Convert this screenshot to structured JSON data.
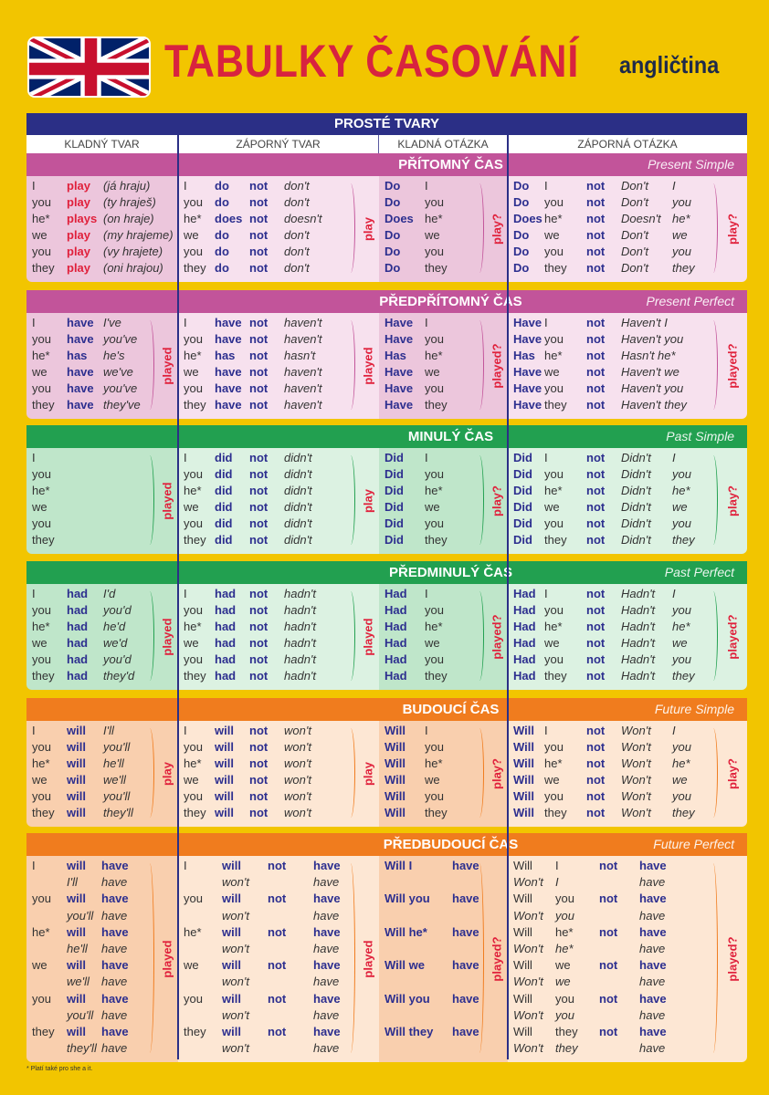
{
  "header": {
    "title": "TABULKY ČASOVÁNÍ",
    "lang": "angličtina"
  },
  "table_title": "PROSTÉ TVARY",
  "columns": [
    "KLADNÝ TVAR",
    "ZÁPORNÝ TVAR",
    "KLADNÁ OTÁZKA",
    "ZÁPORNÁ OTÁZKA"
  ],
  "colors": {
    "pink_head": "#c2549a",
    "pink_light": "#f7e1ee",
    "pink_dark": "#ecc6dc",
    "green_head": "#22a050",
    "green_light": "#dcf2e2",
    "green_dark": "#bfe6ca",
    "orange_head": "#f07c1e",
    "orange_light": "#fde7d4",
    "orange_dark": "#f9cfae"
  },
  "sections": [
    {
      "title": "PŘÍTOMNÝ ČAS",
      "en": "Present Simple",
      "theme": "pink",
      "cols": [
        {
          "bracket": "",
          "rows": [
            [
              "I",
              "play",
              "(já hraju)"
            ],
            [
              "you",
              "play",
              "(ty hraješ)"
            ],
            [
              "he*",
              "plays",
              "(on hraje)"
            ],
            [
              "we",
              "play",
              "(my hrajeme)"
            ],
            [
              "you",
              "play",
              "(vy hrajete)"
            ],
            [
              "they",
              "play",
              "(oni hrajou)"
            ]
          ]
        },
        {
          "bracket": "play",
          "rows": [
            [
              "I",
              "do",
              "not",
              "don't"
            ],
            [
              "you",
              "do",
              "not",
              "don't"
            ],
            [
              "he*",
              "does",
              "not",
              "doesn't"
            ],
            [
              "we",
              "do",
              "not",
              "don't"
            ],
            [
              "you",
              "do",
              "not",
              "don't"
            ],
            [
              "they",
              "do",
              "not",
              "don't"
            ]
          ]
        },
        {
          "bracket": "play?",
          "rows": [
            [
              "Do",
              "I"
            ],
            [
              "Do",
              "you"
            ],
            [
              "Does",
              "he*"
            ],
            [
              "Do",
              "we"
            ],
            [
              "Do",
              "you"
            ],
            [
              "Do",
              "they"
            ]
          ]
        },
        {
          "bracket": "play?",
          "rows": [
            [
              "Do",
              "I",
              "not",
              "Don't",
              "I"
            ],
            [
              "Do",
              "you",
              "not",
              "Don't",
              "you"
            ],
            [
              "Does",
              "he*",
              "not",
              "Doesn't",
              "he*"
            ],
            [
              "Do",
              "we",
              "not",
              "Don't",
              "we"
            ],
            [
              "Do",
              "you",
              "not",
              "Don't",
              "you"
            ],
            [
              "Do",
              "they",
              "not",
              "Don't",
              "they"
            ]
          ]
        }
      ]
    },
    {
      "title": "PŘEDPŘÍTOMNÝ ČAS",
      "en": "Present Perfect",
      "theme": "pink",
      "cols": [
        {
          "bracket": "played",
          "rows": [
            [
              "I",
              "have",
              "I've"
            ],
            [
              "you",
              "have",
              "you've"
            ],
            [
              "he*",
              "has",
              "he's"
            ],
            [
              "we",
              "have",
              "we've"
            ],
            [
              "you",
              "have",
              "you've"
            ],
            [
              "they",
              "have",
              "they've"
            ]
          ]
        },
        {
          "bracket": "played",
          "rows": [
            [
              "I",
              "have",
              "not",
              "haven't"
            ],
            [
              "you",
              "have",
              "not",
              "haven't"
            ],
            [
              "he*",
              "has",
              "not",
              "hasn't"
            ],
            [
              "we",
              "have",
              "not",
              "haven't"
            ],
            [
              "you",
              "have",
              "not",
              "haven't"
            ],
            [
              "they",
              "have",
              "not",
              "haven't"
            ]
          ]
        },
        {
          "bracket": "played?",
          "rows": [
            [
              "Have",
              "I"
            ],
            [
              "Have",
              "you"
            ],
            [
              "Has",
              "he*"
            ],
            [
              "Have",
              "we"
            ],
            [
              "Have",
              "you"
            ],
            [
              "Have",
              "they"
            ]
          ]
        },
        {
          "bracket": "played?",
          "rows": [
            [
              "Have",
              "I",
              "not",
              "Haven't I"
            ],
            [
              "Have",
              "you",
              "not",
              "Haven't you"
            ],
            [
              "Has",
              "he*",
              "not",
              "Hasn't he*"
            ],
            [
              "Have",
              "we",
              "not",
              "Haven't we"
            ],
            [
              "Have",
              "you",
              "not",
              "Haven't you"
            ],
            [
              "Have",
              "they",
              "not",
              "Haven't they"
            ]
          ]
        }
      ]
    },
    {
      "title": "MINULÝ ČAS",
      "en": "Past Simple",
      "theme": "green",
      "cols": [
        {
          "bracket": "played",
          "rows": [
            [
              "I"
            ],
            [
              "you"
            ],
            [
              "he*"
            ],
            [
              "we"
            ],
            [
              "you"
            ],
            [
              "they"
            ]
          ]
        },
        {
          "bracket": "play",
          "rows": [
            [
              "I",
              "did",
              "not",
              "didn't"
            ],
            [
              "you",
              "did",
              "not",
              "didn't"
            ],
            [
              "he*",
              "did",
              "not",
              "didn't"
            ],
            [
              "we",
              "did",
              "not",
              "didn't"
            ],
            [
              "you",
              "did",
              "not",
              "didn't"
            ],
            [
              "they",
              "did",
              "not",
              "didn't"
            ]
          ]
        },
        {
          "bracket": "play?",
          "rows": [
            [
              "Did",
              "I"
            ],
            [
              "Did",
              "you"
            ],
            [
              "Did",
              "he*"
            ],
            [
              "Did",
              "we"
            ],
            [
              "Did",
              "you"
            ],
            [
              "Did",
              "they"
            ]
          ]
        },
        {
          "bracket": "play?",
          "rows": [
            [
              "Did",
              "I",
              "not",
              "Didn't",
              "I"
            ],
            [
              "Did",
              "you",
              "not",
              "Didn't",
              "you"
            ],
            [
              "Did",
              "he*",
              "not",
              "Didn't",
              "he*"
            ],
            [
              "Did",
              "we",
              "not",
              "Didn't",
              "we"
            ],
            [
              "Did",
              "you",
              "not",
              "Didn't",
              "you"
            ],
            [
              "Did",
              "they",
              "not",
              "Didn't",
              "they"
            ]
          ]
        }
      ]
    },
    {
      "title": "PŘEDMINULÝ ČAS",
      "en": "Past Perfect",
      "theme": "green",
      "cols": [
        {
          "bracket": "played",
          "rows": [
            [
              "I",
              "had",
              "I'd"
            ],
            [
              "you",
              "had",
              "you'd"
            ],
            [
              "he*",
              "had",
              "he'd"
            ],
            [
              "we",
              "had",
              "we'd"
            ],
            [
              "you",
              "had",
              "you'd"
            ],
            [
              "they",
              "had",
              "they'd"
            ]
          ]
        },
        {
          "bracket": "played",
          "rows": [
            [
              "I",
              "had",
              "not",
              "hadn't"
            ],
            [
              "you",
              "had",
              "not",
              "hadn't"
            ],
            [
              "he*",
              "had",
              "not",
              "hadn't"
            ],
            [
              "we",
              "had",
              "not",
              "hadn't"
            ],
            [
              "you",
              "had",
              "not",
              "hadn't"
            ],
            [
              "they",
              "had",
              "not",
              "hadn't"
            ]
          ]
        },
        {
          "bracket": "played?",
          "rows": [
            [
              "Had",
              "I"
            ],
            [
              "Had",
              "you"
            ],
            [
              "Had",
              "he*"
            ],
            [
              "Had",
              "we"
            ],
            [
              "Had",
              "you"
            ],
            [
              "Had",
              "they"
            ]
          ]
        },
        {
          "bracket": "played?",
          "rows": [
            [
              "Had",
              "I",
              "not",
              "Hadn't",
              "I"
            ],
            [
              "Had",
              "you",
              "not",
              "Hadn't",
              "you"
            ],
            [
              "Had",
              "he*",
              "not",
              "Hadn't",
              "he*"
            ],
            [
              "Had",
              "we",
              "not",
              "Hadn't",
              "we"
            ],
            [
              "Had",
              "you",
              "not",
              "Hadn't",
              "you"
            ],
            [
              "Had",
              "they",
              "not",
              "Hadn't",
              "they"
            ]
          ]
        }
      ]
    },
    {
      "title": "BUDOUCÍ ČAS",
      "en": "Future Simple",
      "theme": "orange",
      "cols": [
        {
          "bracket": "play",
          "rows": [
            [
              "I",
              "will",
              "I'll"
            ],
            [
              "you",
              "will",
              "you'll"
            ],
            [
              "he*",
              "will",
              "he'll"
            ],
            [
              "we",
              "will",
              "we'll"
            ],
            [
              "you",
              "will",
              "you'll"
            ],
            [
              "they",
              "will",
              "they'll"
            ]
          ]
        },
        {
          "bracket": "play",
          "rows": [
            [
              "I",
              "will",
              "not",
              "won't"
            ],
            [
              "you",
              "will",
              "not",
              "won't"
            ],
            [
              "he*",
              "will",
              "not",
              "won't"
            ],
            [
              "we",
              "will",
              "not",
              "won't"
            ],
            [
              "you",
              "will",
              "not",
              "won't"
            ],
            [
              "they",
              "will",
              "not",
              "won't"
            ]
          ]
        },
        {
          "bracket": "play?",
          "rows": [
            [
              "Will",
              "I"
            ],
            [
              "Will",
              "you"
            ],
            [
              "Will",
              "he*"
            ],
            [
              "Will",
              "we"
            ],
            [
              "Will",
              "you"
            ],
            [
              "Will",
              "they"
            ]
          ]
        },
        {
          "bracket": "play?",
          "rows": [
            [
              "Will",
              "I",
              "not",
              "Won't",
              "I"
            ],
            [
              "Will",
              "you",
              "not",
              "Won't",
              "you"
            ],
            [
              "Will",
              "he*",
              "not",
              "Won't",
              "he*"
            ],
            [
              "Will",
              "we",
              "not",
              "Won't",
              "we"
            ],
            [
              "Will",
              "you",
              "not",
              "Won't",
              "you"
            ],
            [
              "Will",
              "they",
              "not",
              "Won't",
              "they"
            ]
          ]
        }
      ]
    },
    {
      "title": "PŘEDBUDOUCÍ ČAS",
      "en": "Future Perfect",
      "theme": "orange",
      "alt": true,
      "cols": [
        {
          "bracket": "played",
          "rows": [
            [
              "I",
              "will",
              "have"
            ],
            [
              "",
              "I'll",
              "have"
            ],
            [
              "you",
              "will",
              "have"
            ],
            [
              "",
              "you'll",
              "have"
            ],
            [
              "he*",
              "will",
              "have"
            ],
            [
              "",
              "he'll",
              "have"
            ],
            [
              "we",
              "will",
              "have"
            ],
            [
              "",
              "we'll",
              "have"
            ],
            [
              "you",
              "will",
              "have"
            ],
            [
              "",
              "you'll",
              "have"
            ],
            [
              "they",
              "will",
              "have"
            ],
            [
              "",
              "they'll",
              "have"
            ]
          ]
        },
        {
          "bracket": "played",
          "rows": [
            [
              "I",
              "will",
              "not",
              "have"
            ],
            [
              "",
              "won't",
              "",
              "have"
            ],
            [
              "you",
              "will",
              "not",
              "have"
            ],
            [
              "",
              "won't",
              "",
              "have"
            ],
            [
              "he*",
              "will",
              "not",
              "have"
            ],
            [
              "",
              "won't",
              "",
              "have"
            ],
            [
              "we",
              "will",
              "not",
              "have"
            ],
            [
              "",
              "won't",
              "",
              "have"
            ],
            [
              "you",
              "will",
              "not",
              "have"
            ],
            [
              "",
              "won't",
              "",
              "have"
            ],
            [
              "they",
              "will",
              "not",
              "have"
            ],
            [
              "",
              "won't",
              "",
              "have"
            ]
          ]
        },
        {
          "bracket": "played?",
          "rows": [
            [
              "Will I",
              "have"
            ],
            [
              "",
              ""
            ],
            [
              "Will you",
              "have"
            ],
            [
              "",
              ""
            ],
            [
              "Will he*",
              "have"
            ],
            [
              "",
              ""
            ],
            [
              "Will we",
              "have"
            ],
            [
              "",
              ""
            ],
            [
              "Will you",
              "have"
            ],
            [
              "",
              ""
            ],
            [
              "Will they",
              "have"
            ],
            [
              "",
              ""
            ]
          ]
        },
        {
          "bracket": "played?",
          "rows": [
            [
              "Will",
              "I",
              "not",
              "have"
            ],
            [
              "Won't",
              "I",
              "",
              "have"
            ],
            [
              "Will",
              "you",
              "not",
              "have"
            ],
            [
              "Won't",
              "you",
              "",
              "have"
            ],
            [
              "Will",
              "he*",
              "not",
              "have"
            ],
            [
              "Won't",
              "he*",
              "",
              "have"
            ],
            [
              "Will",
              "we",
              "not",
              "have"
            ],
            [
              "Won't",
              "we",
              "",
              "have"
            ],
            [
              "Will",
              "you",
              "not",
              "have"
            ],
            [
              "Won't",
              "you",
              "",
              "have"
            ],
            [
              "Will",
              "they",
              "not",
              "have"
            ],
            [
              "Won't",
              "they",
              "",
              "have"
            ]
          ]
        }
      ]
    }
  ],
  "footnote": "* Platí také pro she a it."
}
